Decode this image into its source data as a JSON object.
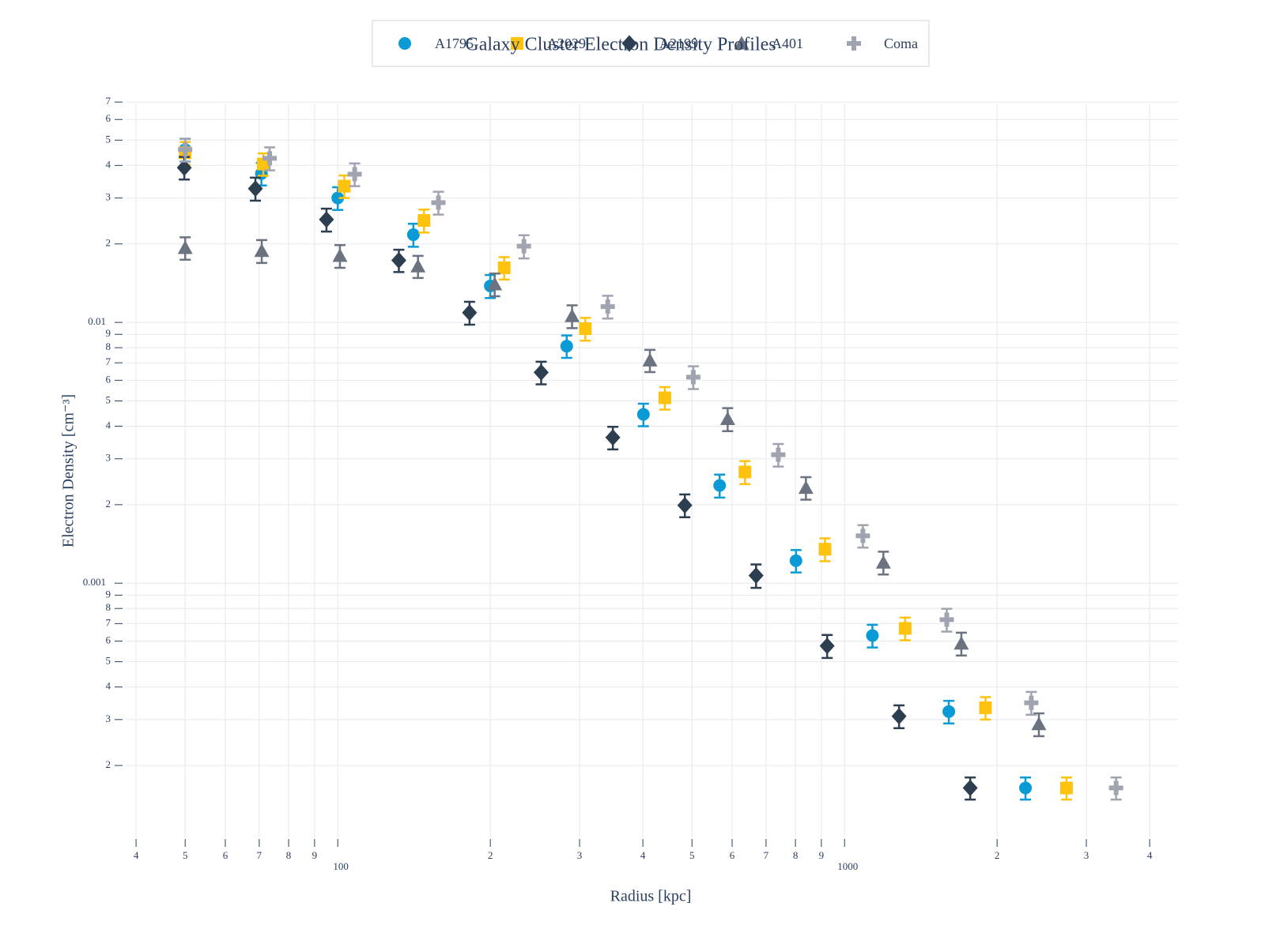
{
  "chart_data": {
    "type": "scatter",
    "title": "Galaxy Cluster Electron Density Profiles",
    "x_label": "Radius [kpc]",
    "y_label": "Electron Density [cm⁻³]",
    "log_x": true,
    "log_y": true,
    "grid": true,
    "legend": "top",
    "xlim": [
      38.3,
      4550
    ],
    "ylim": [
      0.000106,
      0.08
    ],
    "xticks": [
      {
        "value": 40,
        "label": "4"
      },
      {
        "value": 50,
        "label": "5"
      },
      {
        "value": 60,
        "label": "6"
      },
      {
        "value": 70,
        "label": "7"
      },
      {
        "value": 80,
        "label": "8"
      },
      {
        "value": 90,
        "label": "9"
      },
      100,
      {
        "value": 200,
        "label": "2"
      },
      {
        "value": 300,
        "label": "3"
      },
      {
        "value": 400,
        "label": "4"
      },
      {
        "value": 500,
        "label": "5"
      },
      {
        "value": 600,
        "label": "6"
      },
      {
        "value": 700,
        "label": "7"
      },
      {
        "value": 800,
        "label": "8"
      },
      {
        "value": 900,
        "label": "9"
      },
      1000,
      {
        "value": 2000,
        "label": "2"
      },
      {
        "value": 3000,
        "label": "3"
      },
      {
        "value": 4000,
        "label": "4"
      }
    ],
    "yticks": [
      {
        "value": 0.0002,
        "label": "2"
      },
      {
        "value": 0.0003,
        "label": "3"
      },
      {
        "value": 0.0004,
        "label": "4"
      },
      {
        "value": 0.0005,
        "label": "5"
      },
      {
        "value": 0.0006,
        "label": "6"
      },
      {
        "value": 0.0007,
        "label": "7"
      },
      {
        "value": 0.0008,
        "label": "8"
      },
      {
        "value": 0.0009,
        "label": "9"
      },
      0.001,
      {
        "value": 0.002,
        "label": "2"
      },
      {
        "value": 0.003,
        "label": "3"
      },
      {
        "value": 0.004,
        "label": "4"
      },
      {
        "value": 0.005,
        "label": "5"
      },
      {
        "value": 0.006,
        "label": "6"
      },
      {
        "value": 0.007,
        "label": "7"
      },
      {
        "value": 0.008,
        "label": "8"
      },
      {
        "value": 0.009,
        "label": "9"
      },
      0.01,
      {
        "value": 0.02,
        "label": "2"
      },
      {
        "value": 0.03,
        "label": "3"
      },
      {
        "value": 0.04,
        "label": "4"
      },
      {
        "value": 0.05,
        "label": "5"
      },
      {
        "value": 0.06,
        "label": "6"
      },
      {
        "value": 0.07,
        "label": "7"
      }
    ],
    "series": [
      {
        "name": "A1795",
        "color": "#0a9bd6",
        "marker": "circle",
        "x": [
          50,
          70.7,
          100,
          141,
          200,
          283,
          401,
          567,
          802,
          1135,
          1606,
          2275
        ],
        "values": [
          0.046,
          0.0372,
          0.03,
          0.0217,
          0.0138,
          0.00811,
          0.00444,
          0.00237,
          0.00122,
          0.00063,
          0.000322,
          0.000164
        ],
        "error": [
          0.0046,
          0.0037,
          0.003,
          0.0022,
          0.0014,
          0.0008,
          0.00044,
          0.00024,
          0.00012,
          6.3e-05,
          3.2e-05,
          1.6e-05
        ]
      },
      {
        "name": "A2029",
        "color": "#ffc20e",
        "marker": "square",
        "x": [
          50,
          71.3,
          103,
          148,
          213,
          308,
          442,
          636,
          915,
          1317,
          1897,
          2741
        ],
        "values": [
          0.0447,
          0.0405,
          0.0333,
          0.0246,
          0.0162,
          0.00946,
          0.00514,
          0.00267,
          0.00135,
          0.000671,
          0.000333,
          0.000164
        ],
        "error": [
          0.0045,
          0.004,
          0.0033,
          0.0025,
          0.0016,
          0.00095,
          0.00051,
          0.00027,
          0.000135,
          6.7e-05,
          3.3e-05,
          1.6e-05
        ]
      },
      {
        "name": "A2199",
        "color": "#2c3e50",
        "marker": "diamond",
        "x": [
          49.8,
          68.8,
          95,
          132,
          182,
          252,
          349,
          484,
          669,
          924,
          1281,
          1770
        ],
        "values": [
          0.0392,
          0.0326,
          0.0248,
          0.0173,
          0.0109,
          0.00643,
          0.00362,
          0.00199,
          0.00107,
          0.000575,
          0.000309,
          0.000164
        ],
        "error": [
          0.0039,
          0.0033,
          0.0025,
          0.0017,
          0.0011,
          0.00064,
          0.00036,
          0.0002,
          0.00011,
          5.8e-05,
          3.1e-05,
          1.6e-05
        ]
      },
      {
        "name": "A401",
        "color": "#6b7280",
        "marker": "triangle",
        "x": [
          50,
          70.8,
          101,
          144,
          204,
          290,
          413,
          588,
          839,
          1193,
          1700,
          2418
        ],
        "values": [
          0.0193,
          0.0188,
          0.018,
          0.0164,
          0.014,
          0.01057,
          0.00715,
          0.00426,
          0.00232,
          0.0012,
          0.000587,
          0.000288
        ],
        "error": [
          0.0019,
          0.0019,
          0.0018,
          0.0016,
          0.0014,
          0.00106,
          0.0007,
          0.00043,
          0.00023,
          0.00012,
          5.9e-05,
          2.9e-05
        ]
      },
      {
        "name": "Coma",
        "color": "#a0a4b0",
        "marker": "cross",
        "x": [
          50,
          73.4,
          108,
          158,
          233,
          341,
          503,
          740,
          1087,
          1591,
          2336,
          3434
        ],
        "values": [
          0.046,
          0.0426,
          0.037,
          0.0288,
          0.0196,
          0.0115,
          0.00617,
          0.00311,
          0.00152,
          0.000725,
          0.000348,
          0.000164
        ],
        "error": [
          0.0046,
          0.0043,
          0.0037,
          0.0029,
          0.002,
          0.00115,
          0.00062,
          0.00031,
          0.00015,
          7.3e-05,
          3.5e-05,
          1.6e-05
        ]
      }
    ]
  }
}
